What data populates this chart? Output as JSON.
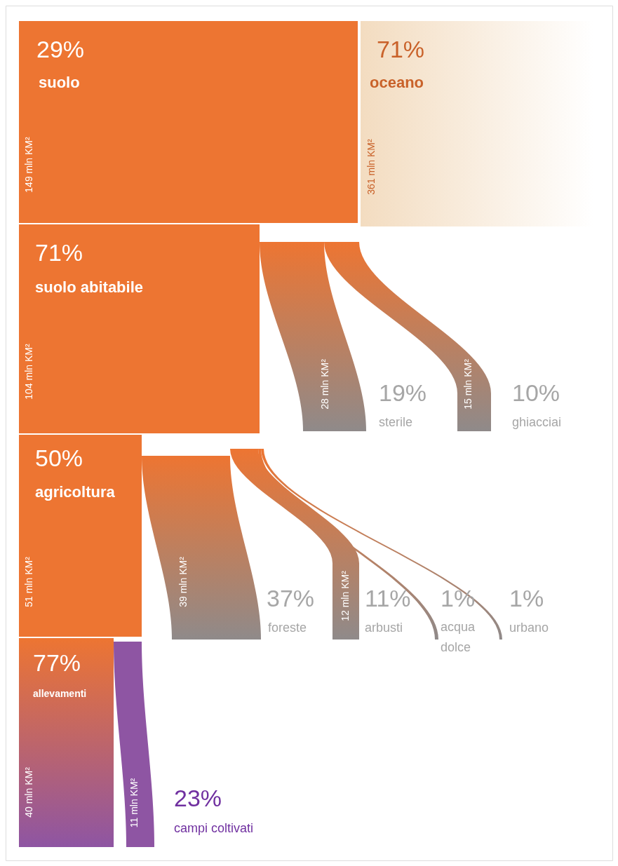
{
  "chart_data": {
    "type": "other",
    "categories": [
      "suolo",
      "oceano",
      "suolo abitabile",
      "sterile",
      "ghiacciai",
      "agricoltura",
      "foreste",
      "arbusti",
      "acqua dolce",
      "urbano",
      "allevamenti",
      "campi coltivati"
    ],
    "values": [
      29,
      71,
      71,
      19,
      10,
      50,
      37,
      11,
      1,
      1,
      77,
      23
    ],
    "value_labels": [
      "29%",
      "71%",
      "71%",
      "19%",
      "10%",
      "50%",
      "37%",
      "11%",
      "1%",
      "1%",
      "77%",
      "23%"
    ],
    "colors": [
      "#ed7532",
      "#f3dcc0",
      "#ed7532",
      "#8f8a8a",
      "#8f8a8a",
      "#ed7532",
      "#8f8a8a",
      "#8f8a8a",
      "#8f8a8a",
      "#8f8a8a",
      "#8e55a3",
      "#8e55a3"
    ],
    "annotations": [
      "149 mln KM²",
      "361 mln KM²",
      "104 mln KM²",
      "28 mln KM²",
      "15 mln KM²",
      "51 mln KM²",
      "39 mln KM²",
      "12 mln KM²",
      "40 mln KM²",
      "11 mln KM²"
    ]
  }
}
